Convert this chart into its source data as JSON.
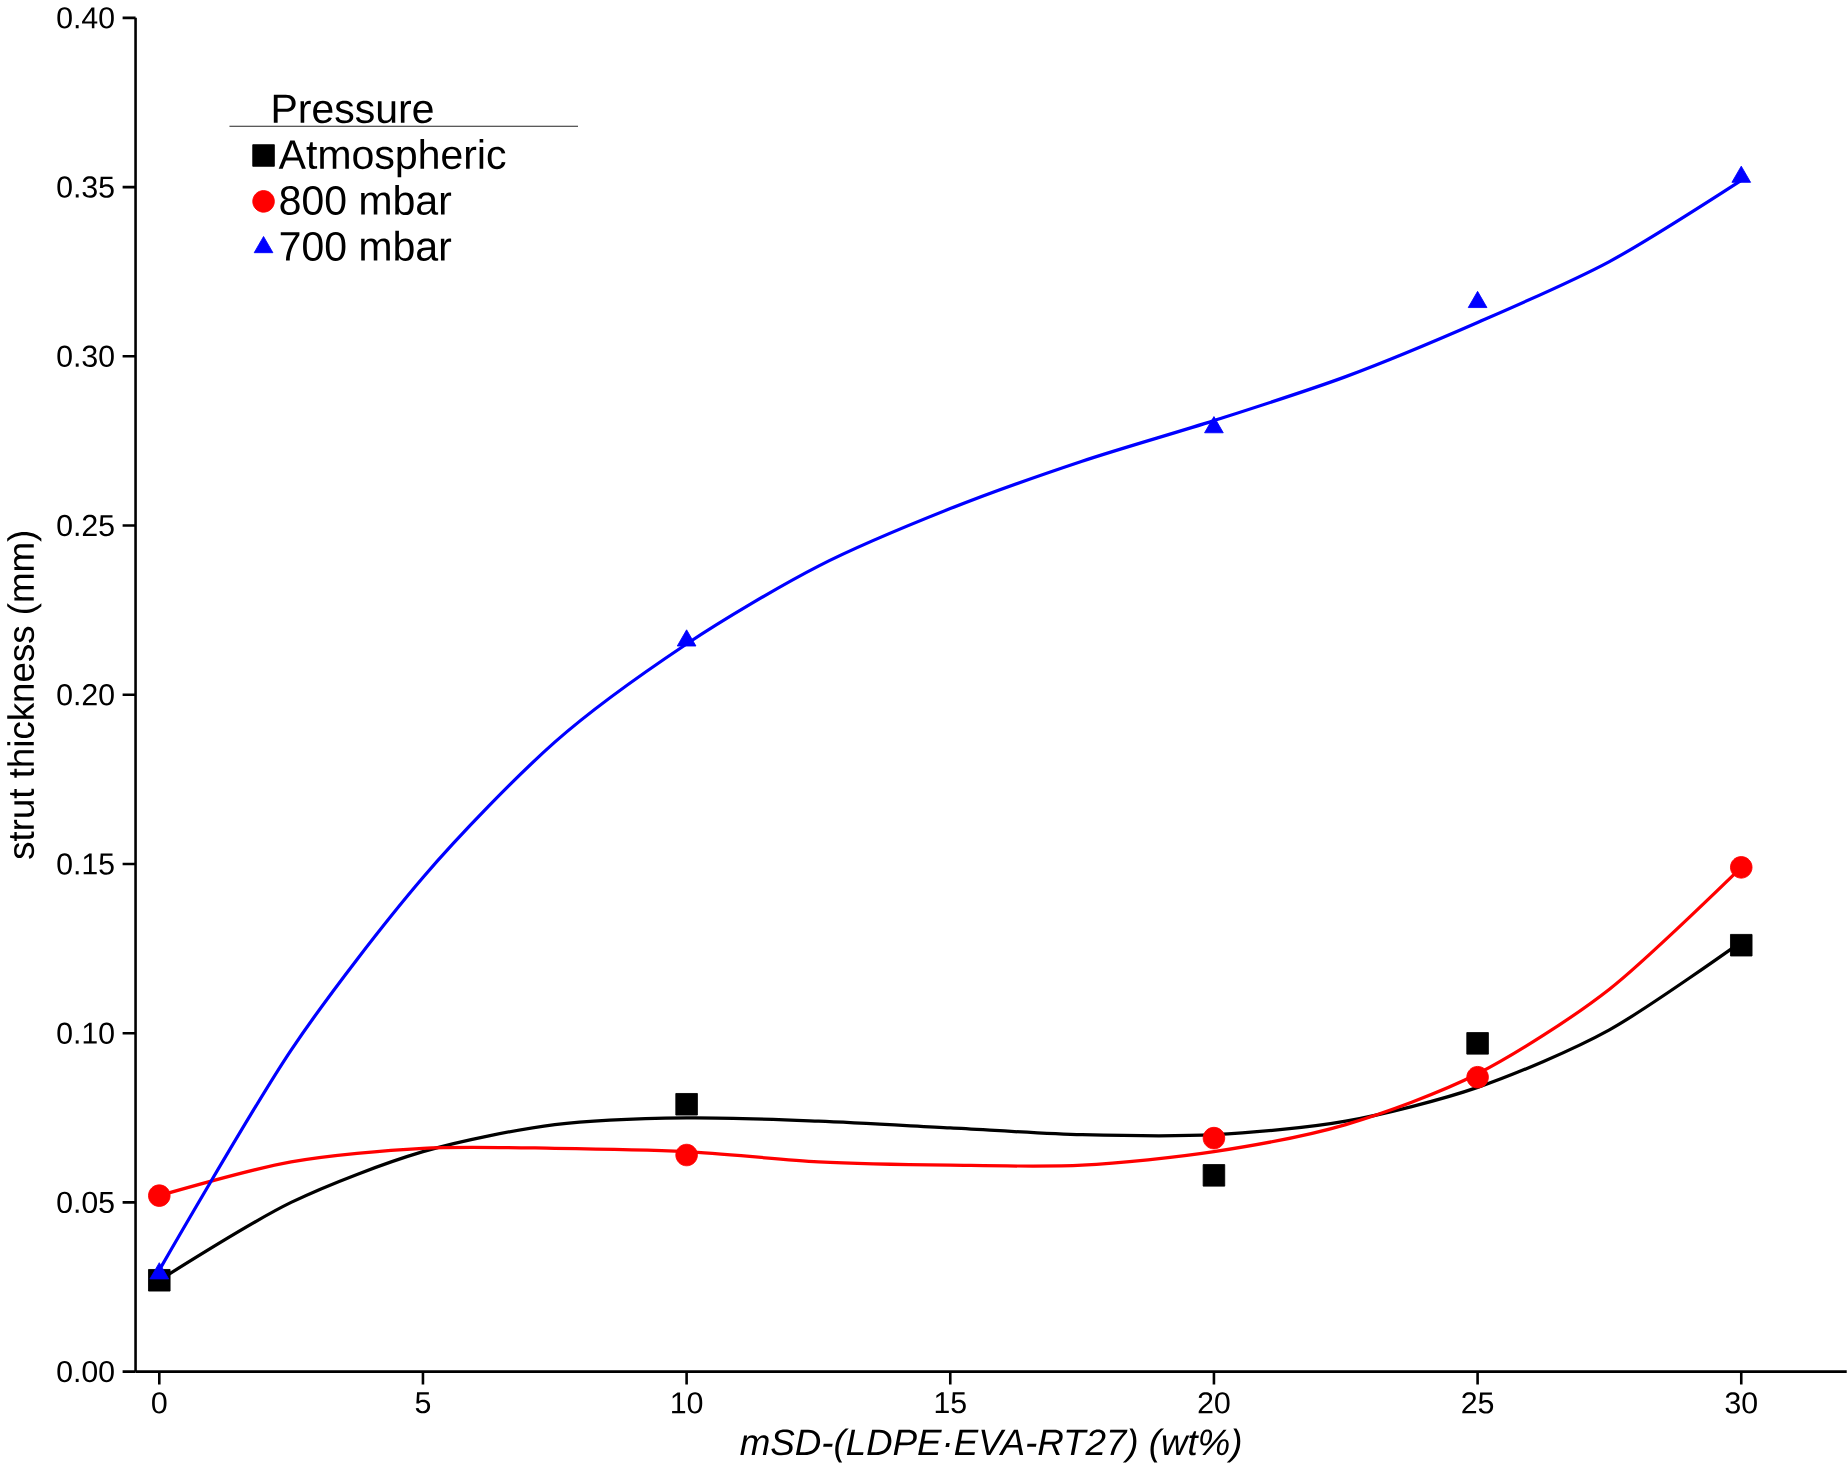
{
  "chart_data": {
    "type": "scatter",
    "xlabel": "mSD-(LDPE·EVA-RT27) (wt%)",
    "ylabel": "strut thickness (mm)",
    "legend_title": "Pressure",
    "legend": "top left",
    "xlim": [
      -0.45,
      32
    ],
    "xticks": [
      0,
      5,
      10,
      15,
      20,
      25,
      30
    ],
    "ylim": [
      0,
      0.4
    ],
    "yticks": [
      {
        "value": 0,
        "label": "0.00"
      },
      {
        "value": 0.05,
        "label": "0.05"
      },
      {
        "value": 0.1,
        "label": "0.10"
      },
      {
        "value": 0.15,
        "label": "0.15"
      },
      {
        "value": 0.2,
        "label": "0.20"
      },
      {
        "value": 0.25,
        "label": "0.25"
      },
      {
        "value": 0.3,
        "label": "0.30"
      },
      {
        "value": 0.35,
        "label": "0.35"
      },
      {
        "value": 0.4,
        "label": "0.40"
      }
    ],
    "series": [
      {
        "name": "Atmospheric",
        "color": "#000000",
        "marker": "square",
        "x": [
          0,
          10,
          20,
          25,
          30
        ],
        "values": [
          0.027,
          0.079,
          0.058,
          0.097,
          0.126
        ]
      },
      {
        "name": "800 mbar",
        "color": "#ff0000",
        "marker": "circle",
        "x": [
          0,
          10,
          20,
          25,
          30
        ],
        "values": [
          0.052,
          0.064,
          0.069,
          0.087,
          0.149
        ]
      },
      {
        "name": "700 mbar",
        "color": "#0000ff",
        "marker": "triangle",
        "x": [
          0,
          10,
          20,
          25,
          30
        ],
        "values": [
          0.029,
          0.216,
          0.279,
          0.316,
          0.353
        ]
      },
      {
        "type": "line",
        "color": "#000000",
        "x": [
          0,
          2.5,
          5,
          7.5,
          10,
          12.5,
          15,
          17.5,
          20,
          22.5,
          25,
          27.5,
          30
        ],
        "values": [
          0.027,
          0.05,
          0.065,
          0.073,
          0.075,
          0.074,
          0.072,
          0.07,
          0.07,
          0.074,
          0.084,
          0.101,
          0.127
        ]
      },
      {
        "type": "line",
        "color": "#ff0000",
        "x": [
          0,
          2.5,
          5,
          7.5,
          10,
          12.5,
          15,
          17.5,
          20,
          22.5,
          25,
          27.5,
          30
        ],
        "values": [
          0.052,
          0.062,
          0.066,
          0.066,
          0.065,
          0.062,
          0.061,
          0.061,
          0.065,
          0.073,
          0.088,
          0.113,
          0.149
        ]
      },
      {
        "type": "line",
        "color": "#0000ff",
        "x": [
          0,
          2.5,
          5,
          7.5,
          10,
          12.5,
          15,
          17.5,
          20,
          22.5,
          25,
          27.5,
          30
        ],
        "values": [
          0.03,
          0.095,
          0.146,
          0.186,
          0.215,
          0.238,
          0.255,
          0.269,
          0.281,
          0.294,
          0.31,
          0.328,
          0.352
        ]
      }
    ]
  }
}
